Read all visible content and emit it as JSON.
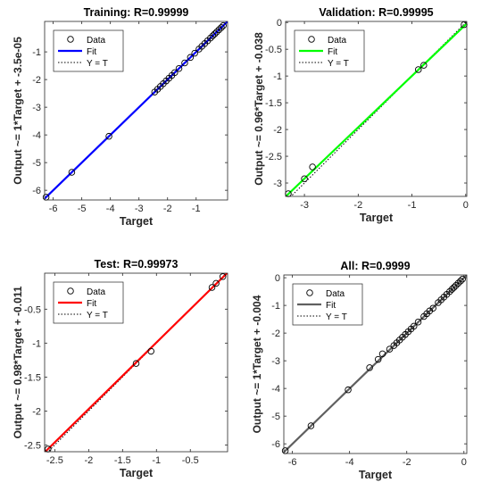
{
  "chart_data": [
    {
      "type": "scatter",
      "title": "Training: R=0.99999",
      "xlabel": "Target",
      "ylabel": "Output ~= 1*Target + -3.5e-05",
      "xlim": [
        -6.3,
        0.1
      ],
      "ylim": [
        -6.35,
        0.1
      ],
      "xticks": [
        -6,
        -5,
        -4,
        -3,
        -2,
        -1
      ],
      "yticks": [
        -6,
        -5,
        -4,
        -3,
        -2,
        -1
      ],
      "fit_color": "#0000ff",
      "fit": {
        "slope": 1,
        "intercept": -3.5e-05
      },
      "legend": [
        "Data",
        "Fit",
        "Y = T"
      ],
      "legend_position": "top-left",
      "x": [
        -6.25,
        -5.35,
        -4.05,
        -2.45,
        -2.35,
        -2.25,
        -2.15,
        -2.05,
        -1.95,
        -1.85,
        -1.75,
        -1.6,
        -1.4,
        -1.2,
        -1.05,
        -0.9,
        -0.8,
        -0.7,
        -0.6,
        -0.5,
        -0.42,
        -0.35,
        -0.28,
        -0.2,
        -0.12,
        -0.05
      ],
      "y": [
        -6.25,
        -5.35,
        -4.05,
        -2.45,
        -2.35,
        -2.25,
        -2.15,
        -2.05,
        -1.95,
        -1.85,
        -1.75,
        -1.6,
        -1.4,
        -1.2,
        -1.05,
        -0.9,
        -0.8,
        -0.7,
        -0.6,
        -0.5,
        -0.42,
        -0.35,
        -0.28,
        -0.2,
        -0.12,
        -0.05
      ]
    },
    {
      "type": "scatter",
      "title": "Validation: R=0.99995",
      "xlabel": "Target",
      "ylabel": "Output ~= 0.96*Target + -0.038",
      "xlim": [
        -3.35,
        0.02
      ],
      "ylim": [
        -3.25,
        0.02
      ],
      "xticks": [
        -3,
        -2,
        -1,
        0
      ],
      "yticks": [
        -3,
        -2.5,
        -2,
        -1.5,
        -1,
        -0.5,
        0
      ],
      "fit_color": "#00ff00",
      "fit": {
        "slope": 0.96,
        "intercept": -0.038
      },
      "legend": [
        "Data",
        "Fit",
        "Y = T"
      ],
      "legend_position": "top-left",
      "x": [
        -3.3,
        -3.0,
        -2.85,
        -0.88,
        -0.78,
        -0.03
      ],
      "y": [
        -3.2,
        -2.92,
        -2.7,
        -0.88,
        -0.8,
        -0.04
      ]
    },
    {
      "type": "scatter",
      "title": "Test: R=0.99973",
      "xlabel": "Target",
      "ylabel": "Output ~= 0.98*Target + -0.011",
      "xlim": [
        -2.65,
        0.05
      ],
      "ylim": [
        -2.6,
        0.03
      ],
      "xticks": [
        -2.5,
        -2,
        -1.5,
        -1,
        -0.5
      ],
      "yticks": [
        -2.5,
        -2,
        -1.5,
        -1,
        -0.5
      ],
      "fit_color": "#ff0000",
      "fit": {
        "slope": 0.98,
        "intercept": -0.011
      },
      "legend": [
        "Data",
        "Fit",
        "Y = T"
      ],
      "legend_position": "top-left",
      "x": [
        -2.6,
        -1.3,
        -1.08,
        -0.18,
        -0.12,
        -0.02
      ],
      "y": [
        -2.56,
        -1.3,
        -1.12,
        -0.18,
        -0.12,
        -0.02
      ]
    },
    {
      "type": "scatter",
      "title": "All: R=0.9999",
      "xlabel": "Target",
      "ylabel": "Output ~= 1*Target + -0.004",
      "xlim": [
        -6.3,
        0.1
      ],
      "ylim": [
        -6.35,
        0.1
      ],
      "xticks": [
        -6,
        -4,
        -2,
        0
      ],
      "yticks": [
        -6,
        -5,
        -4,
        -3,
        -2,
        -1,
        0
      ],
      "fit_color": "#606060",
      "fit": {
        "slope": 1,
        "intercept": -0.004
      },
      "legend": [
        "Data",
        "Fit",
        "Y = T"
      ],
      "legend_position": "top-left",
      "x": [
        -6.25,
        -5.35,
        -4.05,
        -3.3,
        -3.0,
        -2.85,
        -2.6,
        -2.45,
        -2.35,
        -2.25,
        -2.15,
        -2.05,
        -1.95,
        -1.85,
        -1.75,
        -1.6,
        -1.4,
        -1.3,
        -1.2,
        -1.08,
        -0.9,
        -0.8,
        -0.7,
        -0.6,
        -0.5,
        -0.42,
        -0.35,
        -0.28,
        -0.2,
        -0.12,
        -0.05
      ],
      "y": [
        -6.25,
        -5.35,
        -4.05,
        -3.25,
        -2.95,
        -2.75,
        -2.58,
        -2.45,
        -2.35,
        -2.25,
        -2.15,
        -2.05,
        -1.95,
        -1.85,
        -1.75,
        -1.6,
        -1.4,
        -1.3,
        -1.2,
        -1.1,
        -0.9,
        -0.8,
        -0.7,
        -0.6,
        -0.5,
        -0.42,
        -0.35,
        -0.28,
        -0.2,
        -0.12,
        -0.05
      ]
    }
  ]
}
